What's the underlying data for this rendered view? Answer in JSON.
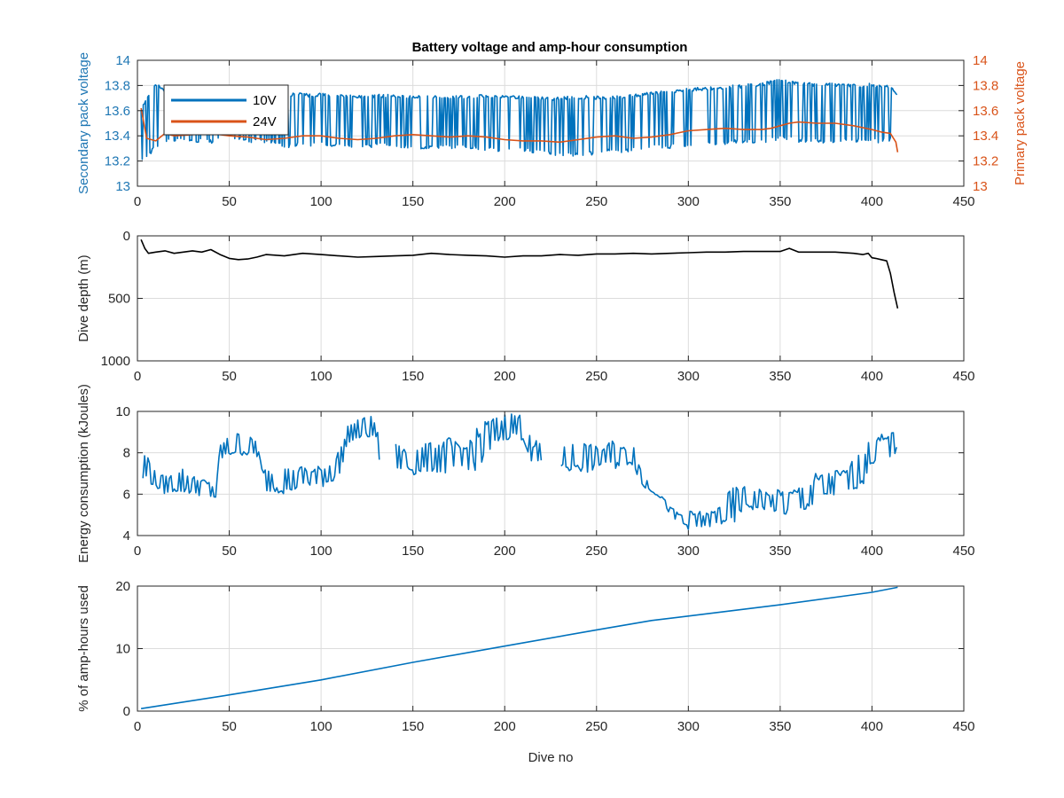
{
  "figure": {
    "title": "Battery voltage and amp-hour consumption"
  },
  "chart_data": [
    {
      "type": "line",
      "title": "Battery voltage and amp-hour consumption",
      "xlabel": "",
      "ylabel": "Secondary pack voltage",
      "ylabel_right": "Primary pack voltage",
      "xlim": [
        0,
        450
      ],
      "ylim": [
        13,
        14
      ],
      "ylim_right": [
        13,
        14
      ],
      "xticks": [
        "0",
        "50",
        "100",
        "150",
        "200",
        "250",
        "300",
        "350",
        "400",
        "450"
      ],
      "yticks": [
        "13",
        "13.2",
        "13.4",
        "13.6",
        "13.8",
        "14"
      ],
      "yticks_right": [
        "13",
        "13.2",
        "13.4",
        "13.6",
        "13.8",
        "14"
      ],
      "grid": true,
      "legend_position": "top-left",
      "colors": {
        "left_axis": "#1f77b4",
        "right_axis": "#d95319"
      },
      "series": [
        {
          "name": "10V",
          "axis": "left",
          "color": "#0072bd",
          "style": "oscillating",
          "x": [
            2,
            5,
            10,
            15,
            20,
            25,
            30,
            35,
            40,
            45,
            50,
            55,
            60,
            65,
            70,
            75,
            80,
            85,
            90,
            95,
            100,
            110,
            120,
            130,
            140,
            150,
            160,
            170,
            180,
            190,
            200,
            210,
            220,
            230,
            240,
            250,
            260,
            270,
            280,
            290,
            300,
            310,
            320,
            330,
            340,
            350,
            360,
            370,
            380,
            390,
            400,
            405,
            410,
            414
          ],
          "high": [
            13.62,
            13.7,
            13.82,
            13.77,
            13.75,
            13.74,
            13.74,
            13.75,
            13.74,
            13.75,
            13.76,
            13.75,
            13.74,
            13.74,
            13.75,
            13.75,
            13.73,
            13.74,
            13.74,
            13.73,
            13.74,
            13.73,
            13.72,
            13.73,
            13.73,
            13.72,
            13.72,
            13.72,
            13.72,
            13.73,
            13.72,
            13.72,
            13.71,
            13.71,
            13.72,
            13.72,
            13.72,
            13.73,
            13.75,
            13.76,
            13.78,
            13.79,
            13.8,
            13.81,
            13.82,
            13.86,
            13.83,
            13.82,
            13.82,
            13.81,
            13.82,
            13.8,
            13.8,
            13.72
          ],
          "low": [
            13.2,
            13.2,
            13.3,
            13.35,
            13.35,
            13.35,
            13.33,
            13.35,
            13.34,
            13.36,
            13.38,
            13.36,
            13.34,
            13.35,
            13.34,
            13.34,
            13.3,
            13.31,
            13.32,
            13.31,
            13.32,
            13.31,
            13.3,
            13.31,
            13.31,
            13.29,
            13.3,
            13.3,
            13.3,
            13.28,
            13.27,
            13.27,
            13.25,
            13.24,
            13.22,
            13.25,
            13.26,
            13.28,
            13.3,
            13.3,
            13.32,
            13.32,
            13.33,
            13.34,
            13.34,
            13.36,
            13.35,
            13.34,
            13.34,
            13.35,
            13.34,
            13.34,
            13.36,
            13.68
          ]
        },
        {
          "name": "24V",
          "axis": "right",
          "color": "#d95319",
          "style": "line",
          "x": [
            2,
            5,
            10,
            15,
            20,
            30,
            40,
            50,
            60,
            70,
            80,
            90,
            100,
            110,
            120,
            130,
            140,
            150,
            160,
            170,
            180,
            190,
            200,
            210,
            220,
            230,
            240,
            250,
            260,
            270,
            280,
            290,
            300,
            310,
            320,
            330,
            340,
            345,
            350,
            355,
            360,
            370,
            380,
            390,
            400,
            405,
            410,
            413,
            414
          ],
          "y": [
            13.62,
            13.38,
            13.36,
            13.42,
            13.4,
            13.41,
            13.42,
            13.4,
            13.39,
            13.37,
            13.38,
            13.4,
            13.4,
            13.38,
            13.37,
            13.38,
            13.4,
            13.41,
            13.4,
            13.39,
            13.4,
            13.39,
            13.37,
            13.36,
            13.36,
            13.35,
            13.37,
            13.39,
            13.4,
            13.38,
            13.39,
            13.41,
            13.44,
            13.45,
            13.46,
            13.45,
            13.45,
            13.46,
            13.48,
            13.5,
            13.51,
            13.5,
            13.5,
            13.48,
            13.45,
            13.43,
            13.42,
            13.35,
            13.27
          ]
        }
      ]
    },
    {
      "type": "line",
      "title": "",
      "xlabel": "",
      "ylabel": "Dive depth (m)",
      "xlim": [
        0,
        450
      ],
      "ylim": [
        0,
        1000
      ],
      "y_reversed": true,
      "xticks": [
        "0",
        "50",
        "100",
        "150",
        "200",
        "250",
        "300",
        "350",
        "400",
        "450"
      ],
      "yticks": [
        "0",
        "500",
        "1000"
      ],
      "grid": true,
      "series": [
        {
          "color": "#000000",
          "x": [
            2,
            4,
            6,
            10,
            15,
            20,
            25,
            30,
            35,
            40,
            45,
            50,
            55,
            60,
            65,
            70,
            80,
            90,
            100,
            110,
            120,
            130,
            140,
            150,
            160,
            170,
            180,
            190,
            200,
            210,
            220,
            230,
            240,
            250,
            260,
            270,
            280,
            290,
            300,
            310,
            320,
            330,
            340,
            350,
            355,
            360,
            370,
            380,
            390,
            395,
            398,
            400,
            402,
            405,
            408,
            410,
            412,
            414
          ],
          "y": [
            30,
            100,
            140,
            130,
            120,
            140,
            130,
            120,
            130,
            110,
            150,
            180,
            190,
            185,
            170,
            150,
            160,
            140,
            150,
            160,
            170,
            165,
            160,
            155,
            140,
            150,
            155,
            160,
            170,
            160,
            160,
            150,
            155,
            145,
            145,
            140,
            145,
            140,
            135,
            130,
            130,
            125,
            125,
            125,
            100,
            130,
            130,
            130,
            140,
            150,
            140,
            175,
            180,
            190,
            200,
            300,
            450,
            580
          ]
        }
      ]
    },
    {
      "type": "line",
      "title": "",
      "xlabel": "",
      "ylabel": "Energy consumption (kJoules)",
      "xlim": [
        0,
        450
      ],
      "ylim": [
        4,
        10
      ],
      "xticks": [
        "0",
        "50",
        "100",
        "150",
        "200",
        "250",
        "300",
        "350",
        "400",
        "450"
      ],
      "yticks": [
        "4",
        "6",
        "8",
        "10"
      ],
      "grid": true,
      "series": [
        {
          "color": "#0072bd",
          "style": "oscillating",
          "x": [
            3,
            5,
            10,
            15,
            20,
            25,
            30,
            35,
            40,
            43,
            45,
            50,
            55,
            60,
            65,
            68,
            70,
            75,
            80,
            85,
            90,
            95,
            100,
            105,
            110,
            112,
            115,
            120,
            125,
            130,
            132,
            135,
            140,
            145,
            150,
            155,
            160,
            165,
            170,
            175,
            180,
            185,
            190,
            195,
            200,
            205,
            210,
            215,
            220,
            225,
            230,
            235,
            240,
            245,
            250,
            255,
            260,
            265,
            270,
            275,
            280,
            285,
            290,
            295,
            300,
            305,
            310,
            315,
            320,
            325,
            330,
            335,
            340,
            345,
            350,
            355,
            360,
            365,
            370,
            375,
            380,
            385,
            390,
            395,
            400,
            405,
            410,
            414
          ],
          "low": [
            6.5,
            6.6,
            6.3,
            6.0,
            6.1,
            6.0,
            6.0,
            5.9,
            5.8,
            5.7,
            7.6,
            7.8,
            7.9,
            7.8,
            7.8,
            6.2,
            6.1,
            6.1,
            6.0,
            6.1,
            6.4,
            6.3,
            6.3,
            6.5,
            6.8,
            7.6,
            8.5,
            8.6,
            8.7,
            8.6,
            7.4,
            null,
            7.2,
            7.1,
            6.9,
            7.0,
            7.1,
            7.0,
            6.9,
            7.0,
            7.2,
            7.1,
            7.5,
            8.4,
            8.6,
            8.7,
            8.6,
            7.2,
            7.4,
            null,
            7.3,
            7.0,
            7.1,
            7.0,
            7.2,
            7.4,
            7.2,
            7.4,
            7.4,
            6.3,
            6.1,
            5.8,
            5.0,
            4.5,
            4.3,
            4.3,
            4.4,
            4.4,
            4.5,
            4.4,
            5.3,
            5.2,
            5.2,
            5.3,
            4.8,
            5.0,
            5.1,
            5.2,
            5.3,
            5.8,
            5.9,
            6.0,
            6.2,
            6.4,
            7.4,
            7.6,
            7.8,
            8.0
          ],
          "high": [
            8.0,
            8.1,
            7.0,
            6.9,
            7.0,
            7.3,
            6.9,
            6.8,
            6.6,
            6.4,
            8.5,
            8.8,
            9.0,
            8.8,
            8.7,
            7.2,
            7.3,
            7.2,
            7.4,
            7.2,
            7.4,
            7.3,
            7.4,
            7.6,
            8.2,
            8.6,
            9.4,
            9.6,
            9.8,
            9.7,
            8.0,
            null,
            8.5,
            8.3,
            8.3,
            8.4,
            8.5,
            8.6,
            8.8,
            8.4,
            8.6,
            9.2,
            9.7,
            9.7,
            9.9,
            10.0,
            9.8,
            8.5,
            8.7,
            null,
            8.2,
            8.4,
            8.6,
            8.5,
            8.3,
            8.4,
            8.7,
            8.3,
            8.5,
            7.0,
            6.5,
            6.0,
            5.4,
            5.1,
            5.2,
            5.2,
            5.1,
            5.3,
            5.9,
            6.4,
            6.4,
            6.2,
            6.3,
            6.0,
            6.3,
            6.2,
            6.4,
            6.6,
            7.1,
            7.0,
            7.2,
            7.2,
            7.7,
            8.2,
            8.7,
            8.9,
            8.9,
            9.3
          ]
        }
      ]
    },
    {
      "type": "line",
      "title": "",
      "xlabel": "Dive no",
      "ylabel": "% of amp-hours used",
      "xlim": [
        0,
        450
      ],
      "ylim": [
        0,
        20
      ],
      "xticks": [
        "0",
        "50",
        "100",
        "150",
        "200",
        "250",
        "300",
        "350",
        "400",
        "450"
      ],
      "yticks": [
        "0",
        "10",
        "20"
      ],
      "grid": true,
      "series": [
        {
          "color": "#0072bd",
          "x": [
            2,
            50,
            100,
            150,
            200,
            250,
            280,
            300,
            350,
            400,
            414
          ],
          "y": [
            0.4,
            2.6,
            5.0,
            7.8,
            10.4,
            13.0,
            14.5,
            15.2,
            17.0,
            19.0,
            19.8
          ]
        }
      ]
    }
  ]
}
